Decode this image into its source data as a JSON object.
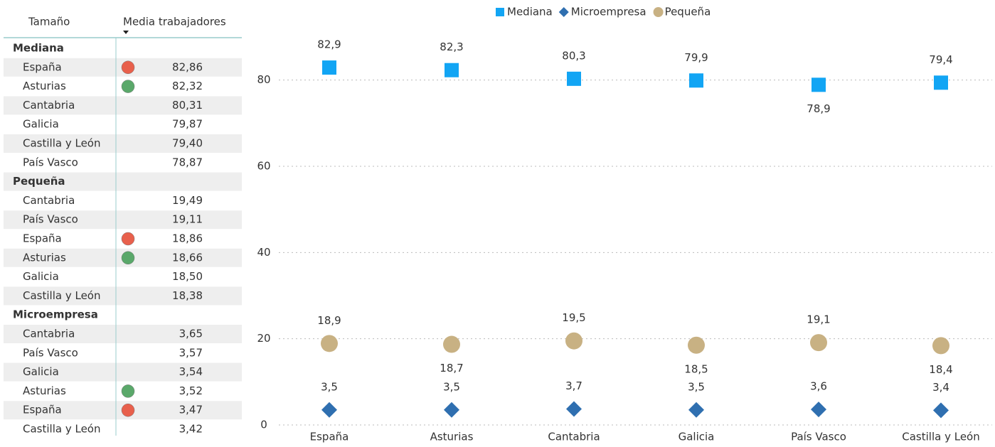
{
  "table": {
    "columns": [
      "Tamaño",
      "Media trabajadores"
    ],
    "groups": [
      {
        "name": "Mediana",
        "rows": [
          {
            "name": "España",
            "value": "82,86",
            "indicator": "#e8604c"
          },
          {
            "name": "Asturias",
            "value": "82,32",
            "indicator": "#5aa86a"
          },
          {
            "name": "Cantabria",
            "value": "80,31"
          },
          {
            "name": "Galicia",
            "value": "79,87"
          },
          {
            "name": "Castilla y León",
            "value": "79,40"
          },
          {
            "name": "País Vasco",
            "value": "78,87"
          }
        ]
      },
      {
        "name": "Pequeña",
        "rows": [
          {
            "name": "Cantabria",
            "value": "19,49"
          },
          {
            "name": "País Vasco",
            "value": "19,11"
          },
          {
            "name": "España",
            "value": "18,86",
            "indicator": "#e8604c"
          },
          {
            "name": "Asturias",
            "value": "18,66",
            "indicator": "#5aa86a"
          },
          {
            "name": "Galicia",
            "value": "18,50"
          },
          {
            "name": "Castilla y León",
            "value": "18,38"
          }
        ]
      },
      {
        "name": "Microempresa",
        "rows": [
          {
            "name": "Cantabria",
            "value": "3,65"
          },
          {
            "name": "País Vasco",
            "value": "3,57"
          },
          {
            "name": "Galicia",
            "value": "3,54"
          },
          {
            "name": "Asturias",
            "value": "3,52",
            "indicator": "#5aa86a"
          },
          {
            "name": "España",
            "value": "3,47",
            "indicator": "#e8604c"
          },
          {
            "name": "Castilla y León",
            "value": "3,42"
          }
        ]
      }
    ]
  },
  "chart_data": {
    "type": "scatter",
    "categories": [
      "España",
      "Asturias",
      "Cantabria",
      "Galicia",
      "País Vasco",
      "Castilla y León"
    ],
    "series": [
      {
        "name": "Mediana",
        "color": "#12a5f4",
        "marker": "square",
        "values": [
          82.9,
          82.3,
          80.3,
          79.9,
          78.9,
          79.4
        ],
        "value_labels": [
          "82,9",
          "82,3",
          "80,3",
          "79,9",
          "78,9",
          "79,4"
        ]
      },
      {
        "name": "Microempresa",
        "color": "#2f6fb0",
        "marker": "diamond",
        "values": [
          3.5,
          3.5,
          3.7,
          3.5,
          3.6,
          3.4
        ],
        "value_labels": [
          "3,5",
          "3,5",
          "3,7",
          "3,5",
          "3,6",
          "3,4"
        ]
      },
      {
        "name": "Pequeña",
        "color": "#c8b183",
        "marker": "circle",
        "values": [
          18.9,
          18.7,
          19.5,
          18.5,
          19.1,
          18.4
        ],
        "value_labels": [
          "18,9",
          "18,7",
          "19,5",
          "18,5",
          "19,1",
          "18,4"
        ]
      }
    ],
    "ylim": [
      0,
      90
    ],
    "yticks": [
      0,
      20,
      40,
      60,
      80
    ],
    "grid": true,
    "legend": "top"
  }
}
